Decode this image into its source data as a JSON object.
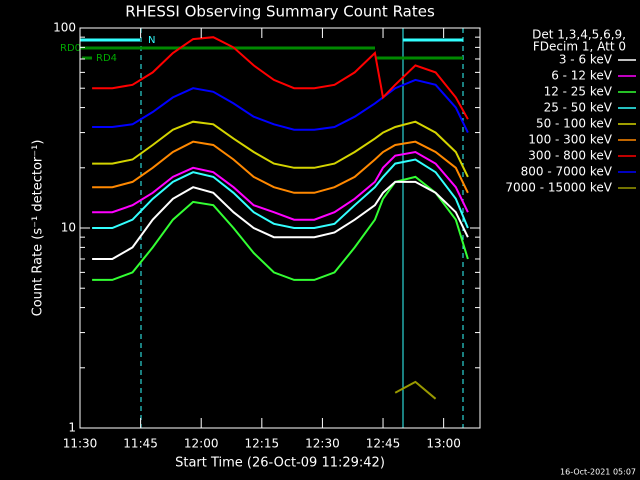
{
  "chart_data": {
    "type": "line",
    "title": "RHESSI Observing Summary Count Rates",
    "x_label": "Start Time (26-Oct-09 11:29:42)",
    "y_label": "Count Rate (s⁻¹ detector⁻¹)",
    "legend_header": [
      "Det 1,3,4,5,6,9,",
      "FDecim 1, Att 0"
    ],
    "timestamp": "16-Oct-2021 05:07",
    "annotations": [
      "RD0",
      "RD4",
      "N"
    ],
    "log_y": true,
    "xlim": [
      0,
      99
    ],
    "xticks": [
      {
        "value": 0,
        "label": "11:30"
      },
      {
        "value": 15,
        "label": "11:45"
      },
      {
        "value": 30,
        "label": "12:00"
      },
      {
        "value": 45,
        "label": "12:15"
      },
      {
        "value": 60,
        "label": "12:30"
      },
      {
        "value": 75,
        "label": "12:45"
      },
      {
        "value": 90,
        "label": "13:00"
      }
    ],
    "ylim": [
      1,
      100
    ],
    "yticks": [
      1,
      10,
      100
    ],
    "yminorticks": [
      2,
      3,
      4,
      5,
      6,
      7,
      8,
      9,
      20,
      30,
      40,
      50,
      60,
      70,
      80,
      90
    ],
    "x": [
      3,
      8,
      13,
      18,
      23,
      28,
      33,
      38,
      43,
      48,
      53,
      58,
      63,
      68,
      73,
      75,
      78,
      83,
      88,
      93,
      96
    ],
    "series": [
      {
        "name": "3 - 6 keV",
        "color": "#ffffff",
        "values": [
          7,
          7,
          8,
          11,
          14,
          16,
          15,
          12,
          10,
          9,
          9,
          9,
          9.5,
          11,
          13,
          15,
          17,
          17,
          15,
          12,
          9
        ]
      },
      {
        "name": "6 - 12 keV",
        "color": "#ff00ff",
        "values": [
          12,
          12,
          13,
          15,
          18,
          20,
          19,
          16,
          13,
          12,
          11,
          11,
          12,
          14,
          17,
          20,
          23,
          24,
          21,
          16,
          12
        ]
      },
      {
        "name": "12 - 25 keV",
        "color": "#33ff33",
        "values": [
          5.5,
          5.5,
          6,
          8,
          11,
          13.5,
          13,
          10,
          7.5,
          6,
          5.5,
          5.5,
          6,
          8,
          11,
          14,
          17,
          18,
          15,
          11,
          7
        ]
      },
      {
        "name": "25 - 50 keV",
        "color": "#33ffff",
        "values": [
          10,
          10,
          11,
          14,
          17,
          19,
          18,
          15,
          12,
          10.5,
          10,
          10,
          10.5,
          13,
          16,
          18,
          21,
          22,
          19,
          14,
          10
        ]
      },
      {
        "name": "50 - 100 keV",
        "color": "#d4d400",
        "values": [
          21,
          21,
          22,
          26,
          31,
          34,
          33,
          28,
          24,
          21,
          20,
          20,
          21,
          24,
          28,
          30,
          32,
          34,
          30,
          24,
          18
        ]
      },
      {
        "name": "100 - 300 keV",
        "color": "#ff8800",
        "values": [
          16,
          16,
          17,
          20,
          24,
          27,
          26,
          22,
          18,
          16,
          15,
          15,
          16,
          18,
          22,
          24,
          26,
          27,
          24,
          20,
          15
        ]
      },
      {
        "name": "300 - 800 keV",
        "color": "#ff0000",
        "values": [
          50,
          50,
          52,
          60,
          75,
          88,
          90,
          80,
          65,
          55,
          50,
          50,
          52,
          60,
          75,
          45,
          52,
          65,
          60,
          45,
          35
        ]
      },
      {
        "name": "800 - 7000 keV",
        "color": "#0000ff",
        "values": [
          32,
          32,
          33,
          38,
          45,
          50,
          48,
          42,
          36,
          33,
          31,
          31,
          32,
          36,
          42,
          45,
          50,
          55,
          52,
          40,
          30
        ]
      },
      {
        "name": "7000 - 15000 keV",
        "color": "#999900",
        "values": [
          null,
          null,
          null,
          null,
          null,
          null,
          null,
          null,
          null,
          null,
          null,
          null,
          null,
          null,
          null,
          null,
          1.5,
          1.7,
          1.4,
          null,
          null
        ]
      }
    ]
  }
}
